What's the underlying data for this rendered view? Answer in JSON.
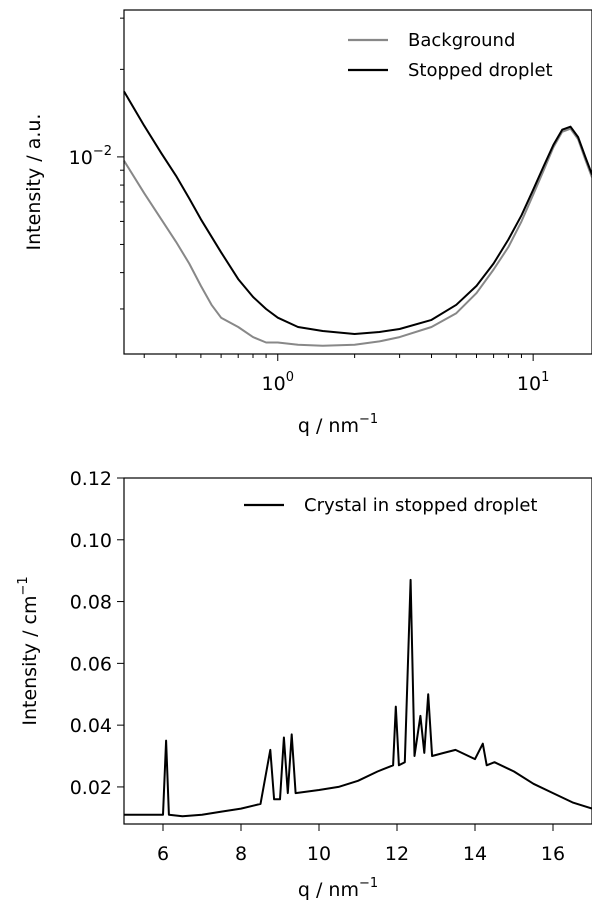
{
  "chart_data": [
    {
      "type": "line",
      "xscale": "log",
      "yscale": "log",
      "xlabel": "q / nm",
      "xlabel_sup": "−1",
      "ylabel": "Intensity / a.u.",
      "xlim": [
        0.25,
        17
      ],
      "ylim": [
        0.0021,
        0.032
      ],
      "grid": false,
      "legend_position": "top-right",
      "xticks": [
        {
          "value": 1,
          "base": "10",
          "exp": "0"
        },
        {
          "value": 10,
          "base": "10",
          "exp": "1"
        }
      ],
      "yticks": [
        {
          "value": 0.01,
          "base": "10",
          "exp": "−2"
        }
      ],
      "series": [
        {
          "name": "Background",
          "color": "#888888",
          "points": [
            [
              0.25,
              0.0097
            ],
            [
              0.3,
              0.0075
            ],
            [
              0.35,
              0.0061
            ],
            [
              0.4,
              0.0051
            ],
            [
              0.45,
              0.0043
            ],
            [
              0.5,
              0.0036
            ],
            [
              0.55,
              0.0031
            ],
            [
              0.6,
              0.0028
            ],
            [
              0.7,
              0.0026
            ],
            [
              0.8,
              0.0024
            ],
            [
              0.9,
              0.0023
            ],
            [
              1.0,
              0.0023
            ],
            [
              1.2,
              0.00226
            ],
            [
              1.5,
              0.00224
            ],
            [
              2.0,
              0.00226
            ],
            [
              2.5,
              0.00232
            ],
            [
              3.0,
              0.0024
            ],
            [
              4.0,
              0.0026
            ],
            [
              5.0,
              0.0029
            ],
            [
              6.0,
              0.0034
            ],
            [
              7.0,
              0.0041
            ],
            [
              8.0,
              0.0049
            ],
            [
              9.0,
              0.006
            ],
            [
              10.0,
              0.0074
            ],
            [
              11.0,
              0.009
            ],
            [
              12.0,
              0.0108
            ],
            [
              13.0,
              0.0122
            ],
            [
              14.0,
              0.0125
            ],
            [
              15.0,
              0.0115
            ],
            [
              16.0,
              0.0098
            ],
            [
              17.0,
              0.0085
            ]
          ]
        },
        {
          "name": "Stopped droplet",
          "color": "#000000",
          "points": [
            [
              0.25,
              0.0168
            ],
            [
              0.3,
              0.0128
            ],
            [
              0.35,
              0.0103
            ],
            [
              0.4,
              0.0086
            ],
            [
              0.45,
              0.0072
            ],
            [
              0.5,
              0.0061
            ],
            [
              0.6,
              0.0047
            ],
            [
              0.7,
              0.0038
            ],
            [
              0.8,
              0.0033
            ],
            [
              0.9,
              0.003
            ],
            [
              1.0,
              0.0028
            ],
            [
              1.2,
              0.0026
            ],
            [
              1.5,
              0.00252
            ],
            [
              2.0,
              0.00246
            ],
            [
              2.5,
              0.0025
            ],
            [
              3.0,
              0.00256
            ],
            [
              4.0,
              0.00275
            ],
            [
              5.0,
              0.0031
            ],
            [
              6.0,
              0.0036
            ],
            [
              7.0,
              0.0043
            ],
            [
              8.0,
              0.0052
            ],
            [
              9.0,
              0.0063
            ],
            [
              10.0,
              0.0077
            ],
            [
              11.0,
              0.0093
            ],
            [
              12.0,
              0.011
            ],
            [
              13.0,
              0.0124
            ],
            [
              14.0,
              0.0127
            ],
            [
              15.0,
              0.0117
            ],
            [
              16.0,
              0.01
            ],
            [
              17.0,
              0.0087
            ]
          ]
        }
      ]
    },
    {
      "type": "line",
      "xlabel": "q / nm",
      "xlabel_sup": "−1",
      "ylabel": "Intensity / cm",
      "ylabel_sup": "−1",
      "xlim": [
        5,
        17
      ],
      "ylim": [
        0.008,
        0.12
      ],
      "grid": false,
      "legend_position": "top-right",
      "xticks": [
        6,
        8,
        10,
        12,
        14,
        16
      ],
      "yticks": [
        0.02,
        0.04,
        0.06,
        0.08,
        0.1,
        0.12
      ],
      "ytick_labels": [
        "0.02",
        "0.04",
        "0.06",
        "0.08",
        "0.10",
        "0.12"
      ],
      "series": [
        {
          "name": "Crystal in stopped droplet",
          "color": "#000000",
          "points": [
            [
              5.0,
              0.011
            ],
            [
              5.5,
              0.011
            ],
            [
              6.0,
              0.011
            ],
            [
              6.08,
              0.035
            ],
            [
              6.15,
              0.011
            ],
            [
              6.5,
              0.0105
            ],
            [
              7.0,
              0.011
            ],
            [
              7.5,
              0.012
            ],
            [
              8.0,
              0.013
            ],
            [
              8.5,
              0.0145
            ],
            [
              8.75,
              0.032
            ],
            [
              8.85,
              0.016
            ],
            [
              9.0,
              0.016
            ],
            [
              9.1,
              0.036
            ],
            [
              9.2,
              0.018
            ],
            [
              9.3,
              0.037
            ],
            [
              9.4,
              0.018
            ],
            [
              10.0,
              0.019
            ],
            [
              10.5,
              0.02
            ],
            [
              11.0,
              0.022
            ],
            [
              11.5,
              0.025
            ],
            [
              11.9,
              0.027
            ],
            [
              11.97,
              0.046
            ],
            [
              12.05,
              0.027
            ],
            [
              12.2,
              0.028
            ],
            [
              12.35,
              0.087
            ],
            [
              12.45,
              0.03
            ],
            [
              12.6,
              0.043
            ],
            [
              12.7,
              0.031
            ],
            [
              12.8,
              0.05
            ],
            [
              12.9,
              0.03
            ],
            [
              13.2,
              0.031
            ],
            [
              13.5,
              0.032
            ],
            [
              14.0,
              0.029
            ],
            [
              14.2,
              0.034
            ],
            [
              14.3,
              0.027
            ],
            [
              14.5,
              0.028
            ],
            [
              15.0,
              0.025
            ],
            [
              15.5,
              0.021
            ],
            [
              16.0,
              0.018
            ],
            [
              16.5,
              0.015
            ],
            [
              17.0,
              0.013
            ]
          ]
        }
      ]
    }
  ]
}
